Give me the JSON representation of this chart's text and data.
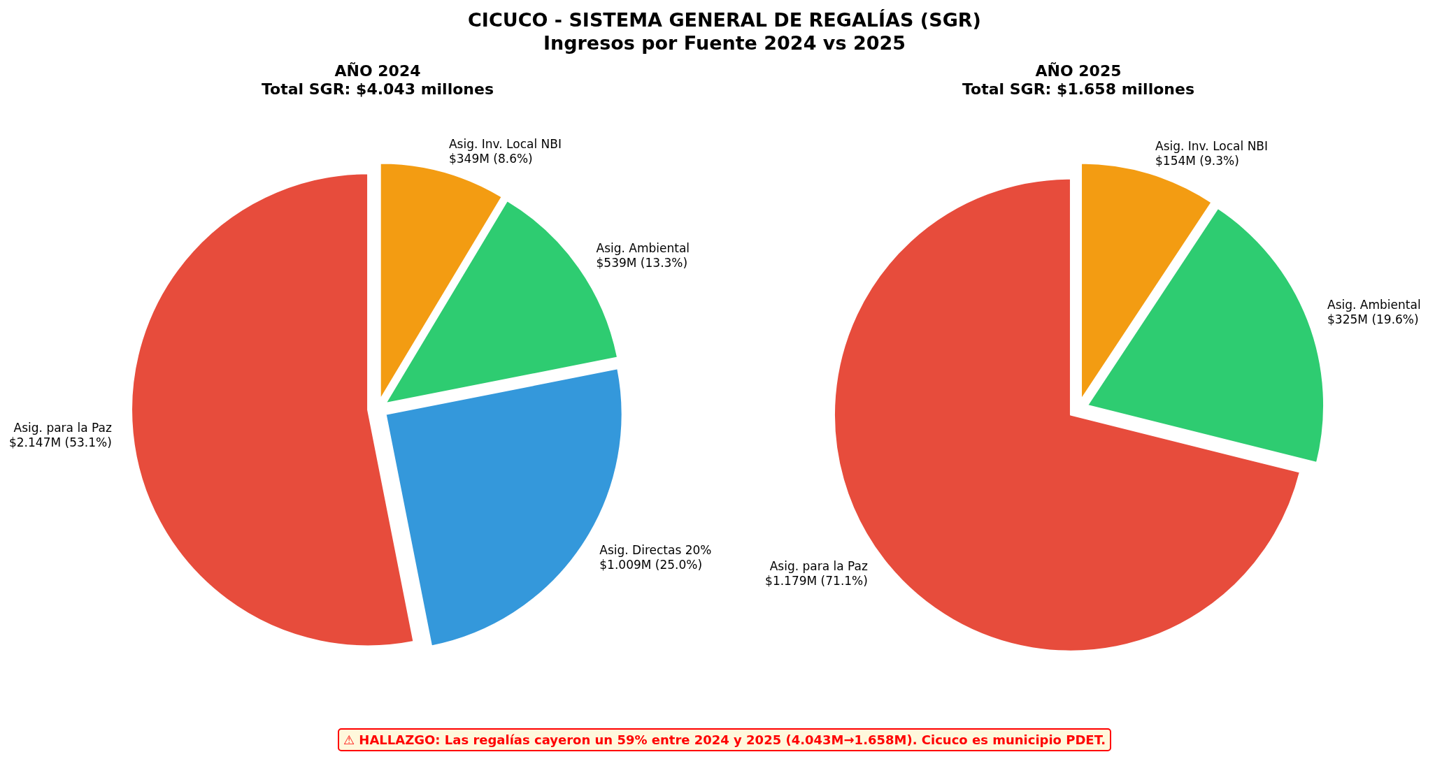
{
  "chart_data": [
    {
      "type": "other",
      "title": "CICUCO - SISTEMA GENERAL DE REGALÍAS (SGR)",
      "subtitle": "Ingresos por Fuente 2024 vs 2025",
      "annotations": [
        "⚠ HALLAZGO: Las regalías cayeron un 59% entre 2024 y 2025 (4.043M→1.658M). Cicuco es municipio PDET."
      ]
    },
    {
      "type": "pie",
      "title": "AÑO 2024",
      "subtitle": "Total SGR: $4.043 millones",
      "categories": [
        "Asig. Inv. Local NBI",
        "Asig. Ambiental",
        "Asig. Directas 20%",
        "Asig. para la Paz"
      ],
      "values": [
        8.6,
        13.3,
        25.0,
        53.1
      ],
      "colors": [
        "#f39c12",
        "#2ecc71",
        "#3498db",
        "#e74c3c"
      ],
      "value_labels": [
        "$349M (8.6%)",
        "$539M (13.3%)",
        "$1.009M (25.0%)",
        "$2.147M (53.1%)"
      ]
    },
    {
      "type": "pie",
      "title": "AÑO 2025",
      "subtitle": "Total SGR: $1.658 millones",
      "categories": [
        "Asig. Inv. Local NBI",
        "Asig. Ambiental",
        "Asig. para la Paz"
      ],
      "values": [
        9.3,
        19.6,
        71.1
      ],
      "colors": [
        "#f39c12",
        "#2ecc71",
        "#e74c3c"
      ],
      "value_labels": [
        "$154M (9.3%)",
        "$325M (19.6%)",
        "$1.179M (71.1%)"
      ]
    }
  ]
}
